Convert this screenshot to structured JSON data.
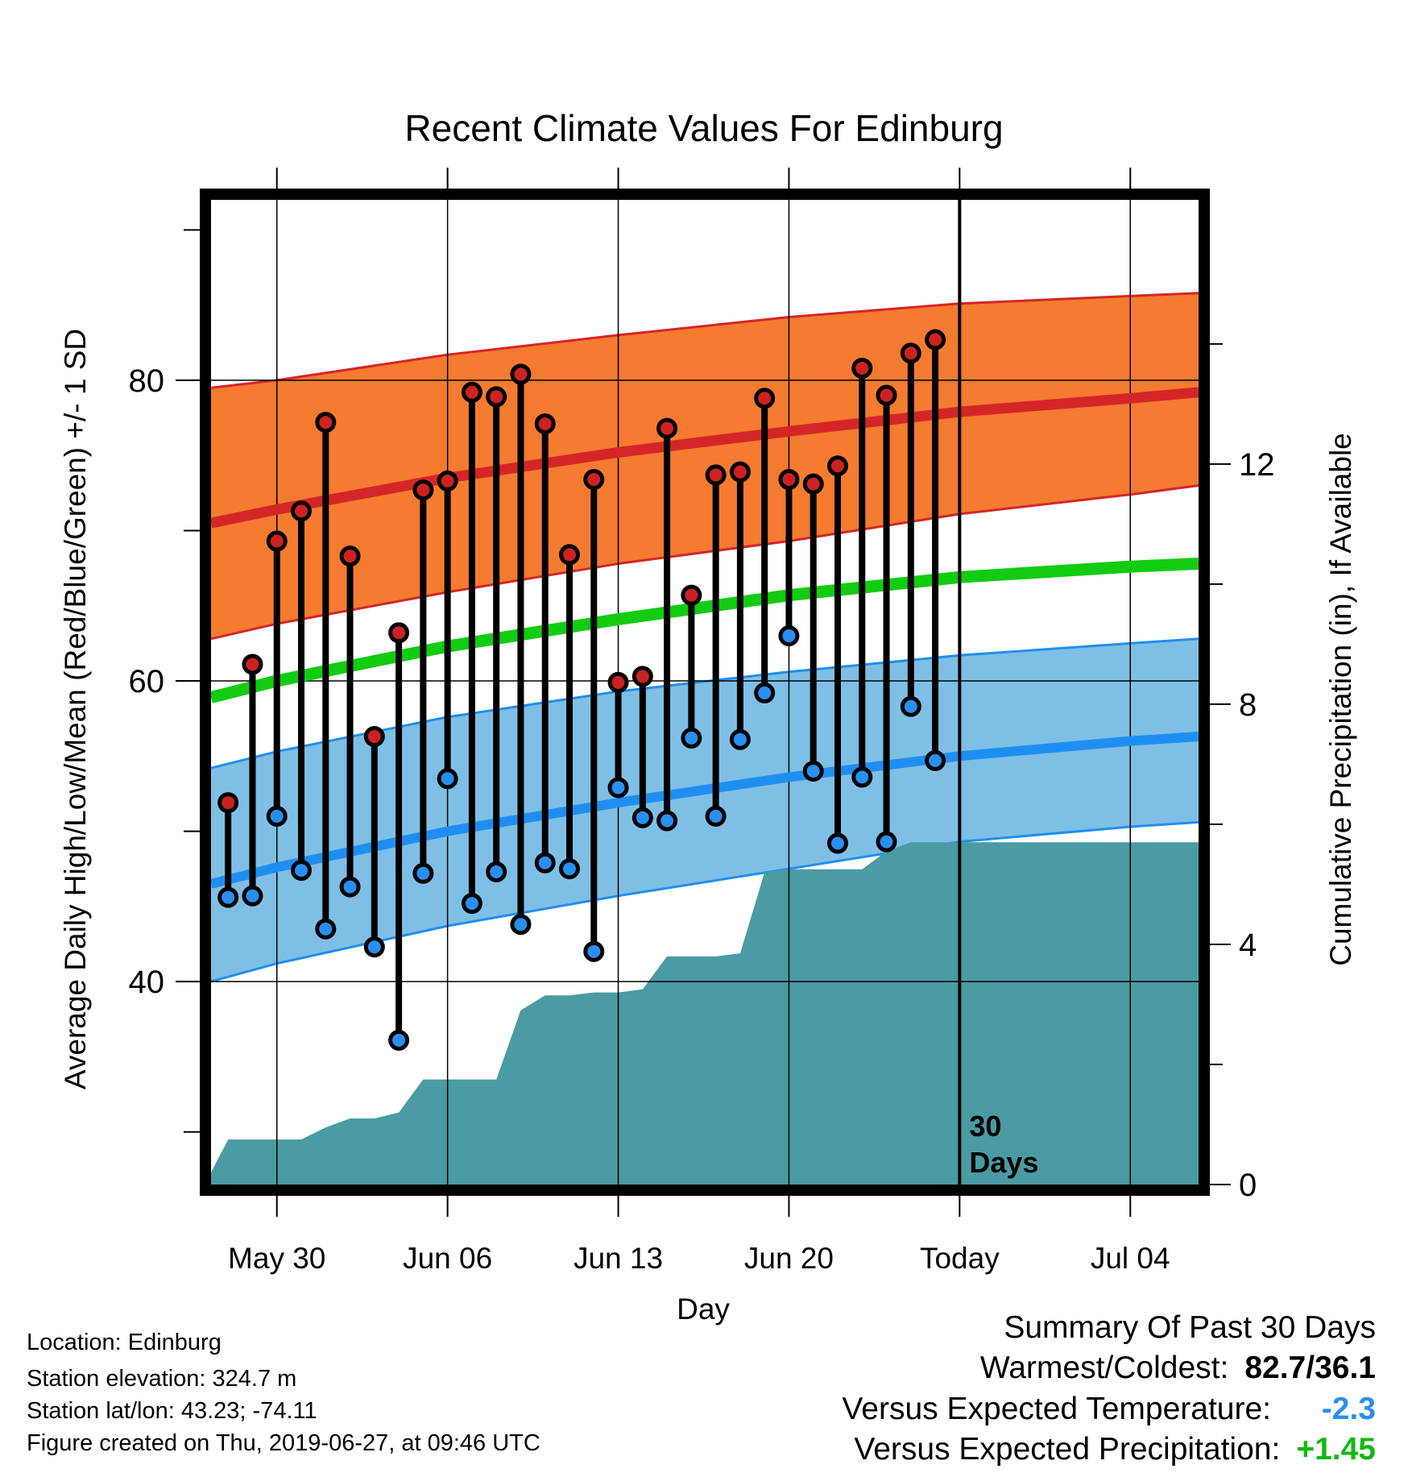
{
  "chart_data": {
    "type": "line",
    "title": "Recent Climate Values For Edinburg",
    "xlabel": "Day",
    "ylabel_left": "Average Daily High/Low/Mean (Red/Blue/Green) +/- 1 SD",
    "ylabel_right": "Cumulative Precipitation (in), If Available",
    "x_ticks": [
      "May 30",
      "Jun 06",
      "Jun 13",
      "Jun 20",
      "Today",
      "Jul 04"
    ],
    "x_tick_day_index": [
      3,
      10,
      17,
      24,
      31,
      38
    ],
    "x_range_day_index": [
      0.3,
      40.8
    ],
    "ylim_left": [
      26.5,
      92
    ],
    "yticks_left": [
      40,
      60,
      80
    ],
    "ylim_right": [
      0,
      16.4
    ],
    "yticks_right": [
      0,
      4,
      8,
      12
    ],
    "today_label": "30 Days",
    "today_day_index": 31,
    "grid": true,
    "normals": {
      "day_index": [
        0.3,
        3,
        10,
        17,
        24,
        31,
        38,
        40.8
      ],
      "high_upper": [
        79.5,
        80.0,
        81.7,
        83.0,
        84.2,
        85.1,
        85.6,
        85.8
      ],
      "high_mean": [
        70.5,
        71.4,
        73.5,
        75.2,
        76.6,
        77.9,
        78.8,
        79.2
      ],
      "high_lower": [
        62.8,
        63.8,
        65.9,
        67.8,
        69.3,
        71.1,
        72.4,
        73.0
      ],
      "mean": [
        58.9,
        60.0,
        62.3,
        64.1,
        65.7,
        66.9,
        67.6,
        67.8
      ],
      "low_upper": [
        54.2,
        55.3,
        57.6,
        59.3,
        60.6,
        61.7,
        62.5,
        62.8
      ],
      "low_mean": [
        46.5,
        47.6,
        50.0,
        51.9,
        53.6,
        55.0,
        56.0,
        56.3
      ],
      "low_lower": [
        40.0,
        41.2,
        43.7,
        45.7,
        47.5,
        49.3,
        50.3,
        50.6
      ]
    },
    "daily": {
      "day_index": [
        1,
        2,
        3,
        4,
        5,
        6,
        7,
        8,
        9,
        10,
        11,
        12,
        13,
        14,
        15,
        16,
        17,
        18,
        19,
        20,
        21,
        22,
        23,
        24,
        25,
        26,
        27,
        28,
        29,
        30
      ],
      "high": [
        51.9,
        61.1,
        69.3,
        71.3,
        77.2,
        68.3,
        56.3,
        63.2,
        72.7,
        73.3,
        79.2,
        78.9,
        80.4,
        77.1,
        68.4,
        73.4,
        59.9,
        60.3,
        76.8,
        65.7,
        73.7,
        73.9,
        78.8,
        73.4,
        73.1,
        74.3,
        80.8,
        79.0,
        81.8,
        82.7
      ],
      "low": [
        45.6,
        45.7,
        51.0,
        47.4,
        43.5,
        46.3,
        42.3,
        36.1,
        47.2,
        53.5,
        45.2,
        47.3,
        43.8,
        47.9,
        47.5,
        42.0,
        52.9,
        50.9,
        50.7,
        56.2,
        51.0,
        56.1,
        59.2,
        63.0,
        54.0,
        49.2,
        53.6,
        49.3,
        58.3,
        54.7
      ]
    },
    "precip_cumulative": {
      "day_index": [
        0.3,
        1,
        2,
        3,
        4,
        5,
        6,
        7,
        8,
        9,
        10,
        11,
        12,
        13,
        14,
        15,
        16,
        17,
        18,
        19,
        20,
        21,
        22,
        23,
        24,
        25,
        26,
        27,
        28,
        29,
        30,
        40.8
      ],
      "inches": [
        0.2,
        0.75,
        0.75,
        0.75,
        0.75,
        0.95,
        1.1,
        1.1,
        1.2,
        1.75,
        1.75,
        1.75,
        1.75,
        2.9,
        3.15,
        3.15,
        3.2,
        3.2,
        3.25,
        3.8,
        3.8,
        3.8,
        3.85,
        5.2,
        5.25,
        5.25,
        5.25,
        5.25,
        5.55,
        5.7,
        5.7,
        5.7
      ]
    },
    "colors": {
      "high_band": "#f47b30",
      "high_line": "#d42626",
      "mean_line": "#12cc12",
      "low_band": "#80bfe5",
      "low_line": "#1e8ff0",
      "precip_fill": "#4a9ba3",
      "high_marker": "#cc2222",
      "low_marker": "#2a8ff0"
    }
  },
  "footer": {
    "location": "Location: Edinburg",
    "elevation": "Station elevation: 324.7 m",
    "latlon": "Station lat/lon: 43.23; -74.11",
    "created": "Figure created on Thu, 2019-06-27, at 09:46 UTC"
  },
  "summary": {
    "title": "Summary Of Past 30 Days",
    "warmest_coldest_label": "Warmest/Coldest:",
    "warmest_coldest_value": "82.7/36.1",
    "temp_label": "Versus Expected Temperature:",
    "temp_value": "-2.3",
    "temp_color": "#2a8ff0",
    "precip_label": "Versus Expected Precipitation:",
    "precip_value": "+1.45",
    "precip_color": "#12b812"
  }
}
